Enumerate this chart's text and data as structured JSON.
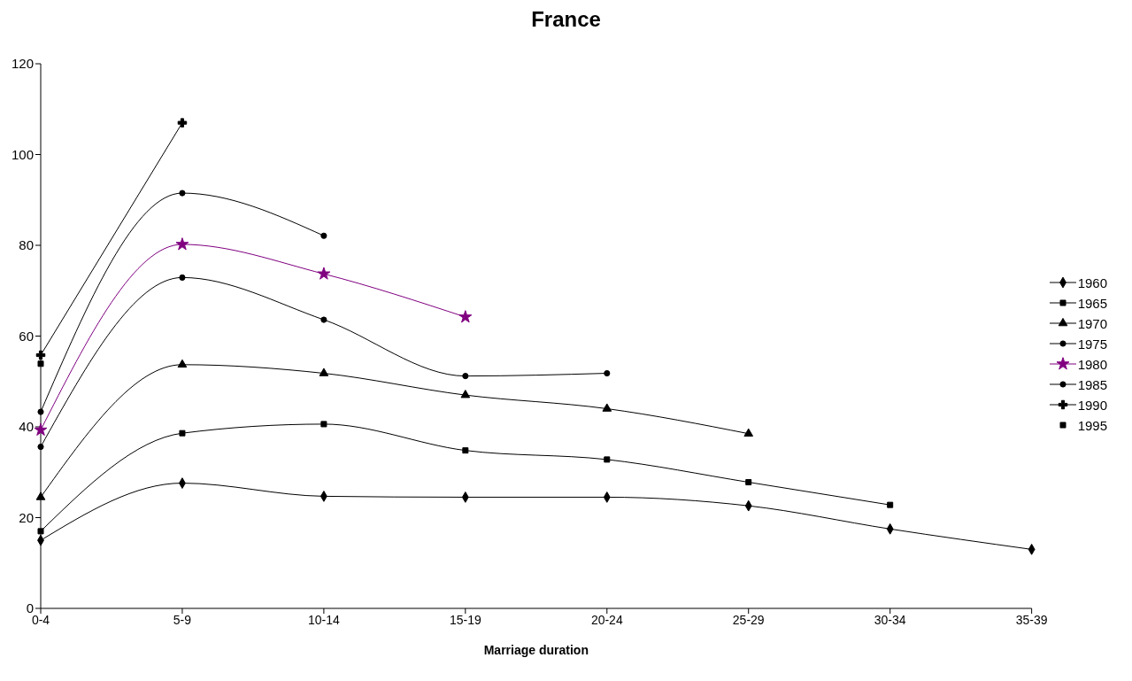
{
  "chart_data": {
    "type": "line",
    "title": "France",
    "xlabel": "Marriage duration",
    "categories": [
      "0-4",
      "5-9",
      "10-14",
      "15-19",
      "20-24",
      "25-29",
      "30-34",
      "35-39"
    ],
    "series": [
      {
        "name": "1960",
        "color": "#000000",
        "marker": "diamond",
        "values": [
          15,
          27.6,
          24.7,
          24.5,
          24.5,
          22.6,
          17.5,
          13
        ]
      },
      {
        "name": "1965",
        "color": "#000000",
        "marker": "square",
        "values": [
          17,
          38.6,
          40.6,
          34.8,
          32.8,
          27.8,
          22.8,
          null
        ]
      },
      {
        "name": "1970",
        "color": "#000000",
        "marker": "triangle",
        "values": [
          24.5,
          53.7,
          51.8,
          47,
          44,
          38.5,
          null,
          null
        ]
      },
      {
        "name": "1975",
        "color": "#000000",
        "marker": "circle",
        "values": [
          35.6,
          72.9,
          63.6,
          51.2,
          51.8,
          null,
          null,
          null
        ]
      },
      {
        "name": "1980",
        "color": "#800080",
        "marker": "star",
        "values": [
          39.3,
          80.2,
          73.7,
          64.2,
          null,
          null,
          null,
          null
        ]
      },
      {
        "name": "1985",
        "color": "#000000",
        "marker": "circle",
        "values": [
          43.3,
          91.5,
          82.1,
          null,
          null,
          null,
          null,
          null
        ]
      },
      {
        "name": "1990",
        "color": "#000000",
        "marker": "cross",
        "values": [
          55.8,
          107,
          null,
          null,
          null,
          null,
          null,
          null
        ]
      },
      {
        "name": "1995",
        "color": "#000000",
        "marker": "square",
        "type": "scatter",
        "values": [
          53.9,
          null,
          null,
          null,
          null,
          null,
          null,
          null
        ]
      }
    ],
    "ylim": [
      0,
      120
    ],
    "yticks": [
      0,
      20,
      40,
      60,
      80,
      100,
      120
    ],
    "grid": false,
    "legend": "right",
    "line_style": "solid"
  }
}
